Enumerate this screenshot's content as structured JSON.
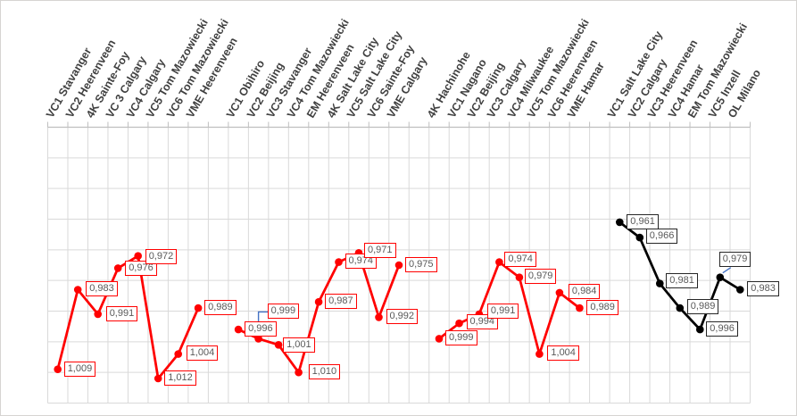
{
  "chart": {
    "background": "#FFFFFF",
    "frame_border_color": "#D6D4D2",
    "gridline_color": "#D9D9D9",
    "axis_line_color": "#BFBFBF",
    "category_label_color": "#404040",
    "data_label_text_color": "#595959",
    "leader_line_color": "#4472C4",
    "series_red": "#FF0000",
    "series_black": "#000000"
  },
  "chart_data": {
    "type": "line",
    "title": "",
    "legend": "none",
    "grid": true,
    "y_axis": {
      "min": 0.93,
      "max": 1.02,
      "step": 0.01,
      "inverted": true,
      "tick_labels_visible": false
    },
    "x_axis": {
      "position": "top",
      "label_rotation_deg": 60,
      "gap_between_groups": 1
    },
    "series": [
      {
        "name": "season-1",
        "color": "#FF0000",
        "label_border_color": "#FF0000",
        "points": [
          {
            "category": "VC1 Stavanger",
            "value": 1.009,
            "label": "1,009"
          },
          {
            "category": "VC2 Heerenveen",
            "value": 0.983,
            "label": "0,983",
            "label_offset": [
              9,
              0
            ]
          },
          {
            "category": "4K Sainte-Foy",
            "value": 0.991,
            "label": "0,991",
            "label_offset": [
              9,
              0
            ]
          },
          {
            "category": "VC 3 Calgary",
            "value": 0.976,
            "label": "0,976",
            "label_offset": [
              8,
              1
            ]
          },
          {
            "category": "VC4 Calgary",
            "value": 0.972,
            "label": "0,972",
            "label_offset": [
              8,
              1
            ]
          },
          {
            "category": "VC5 Tom Mazowiecki",
            "value": 1.012,
            "label": "1,012"
          },
          {
            "category": "VC6 Tom Mazowiecki",
            "value": 1.004,
            "label": "1,004",
            "label_offset": [
              9,
              0
            ]
          },
          {
            "category": "VME Heerenveen",
            "value": 0.989,
            "label": "0,989"
          }
        ]
      },
      {
        "name": "season-2",
        "color": "#FF0000",
        "label_border_color": "#FF0000",
        "points": [
          {
            "category": "VC1 Obihiro",
            "value": 0.996,
            "label": "0,996"
          },
          {
            "category": "VC2 Beijing",
            "value": 0.999,
            "label": "0,999",
            "label_offset": [
              10,
              -30
            ],
            "leader": "elbow"
          },
          {
            "category": "VC3 Stavanger",
            "value": 1.001,
            "label": "1,001",
            "label_offset": [
              5,
              1
            ]
          },
          {
            "category": "VC4 Tom Mazowiecki",
            "value": 1.01,
            "label": "1,010",
            "label_offset": [
              11,
              0
            ]
          },
          {
            "category": "EM Heerenveen",
            "value": 0.987,
            "label": "0,987"
          },
          {
            "category": "4K Salt Lake City",
            "value": 0.974,
            "label": "0,974"
          },
          {
            "category": "VC5 Salt Lake City",
            "value": 0.971,
            "label": "0,971",
            "label_offset": [
              6,
              -2
            ]
          },
          {
            "category": "VC6 Sainte-Foy",
            "value": 0.992,
            "label": "0,992",
            "label_offset": [
              8,
              0
            ]
          },
          {
            "category": "VME Calgary",
            "value": 0.975,
            "label": "0,975"
          }
        ]
      },
      {
        "name": "season-3",
        "color": "#FF0000",
        "label_border_color": "#FF0000",
        "points": [
          {
            "category": "4K Hachinohe",
            "value": 0.999,
            "label": "0,999"
          },
          {
            "category": "VC1 Nagano",
            "value": 0.994,
            "label": "0,994",
            "label_offset": [
              8,
              -1
            ]
          },
          {
            "category": "VC2 Beijing",
            "value": 0.991,
            "label": "0,991",
            "label_offset": [
              9,
              -3
            ]
          },
          {
            "category": "VC3 Calgary",
            "value": 0.974,
            "label": "0,974",
            "label_offset": [
              6,
              -2
            ]
          },
          {
            "category": "VC4 Milwaukee",
            "value": 0.979,
            "label": "0,979",
            "label_offset": [
              6,
              -1
            ]
          },
          {
            "category": "VC5 Tom Mazowiecki",
            "value": 1.004,
            "label": "1,004",
            "label_offset": [
              9,
              0
            ]
          },
          {
            "category": "VC6 Heerenveen",
            "value": 0.984,
            "label": "0,984",
            "label_offset": [
              10,
              -1
            ]
          },
          {
            "category": "VME Hamar",
            "value": 0.989,
            "label": "0,989",
            "label_offset": [
              8,
              0
            ]
          }
        ]
      },
      {
        "name": "season-4",
        "color": "#000000",
        "label_border_color": "#262626",
        "points": [
          {
            "category": "VC1 Salt Lake City",
            "value": 0.961,
            "label": "0,961",
            "label_offset": [
              8,
              0
            ]
          },
          {
            "category": "VC2 Calgary",
            "value": 0.966,
            "label": "0,966",
            "label_offset": [
              7,
              -1
            ]
          },
          {
            "category": "VC3 Heerenveen",
            "value": 0.981,
            "label": "0,981",
            "label_offset": [
              7,
              -2
            ]
          },
          {
            "category": "VC4 Hamar",
            "value": 0.989,
            "label": "0,989",
            "label_offset": [
              8,
              -1
            ]
          },
          {
            "category": "EM Tom Mazowiecki",
            "value": 0.996,
            "label": "0,996",
            "label_offset": [
              7,
              0
            ]
          },
          {
            "category": "VC5 Inzell",
            "value": 0.979,
            "label": "0,979",
            "label_offset": [
              -1,
              -20
            ],
            "leader": "straight"
          },
          {
            "category": "OL Milano",
            "value": 0.983,
            "label": "0,983",
            "label_offset": [
              8,
              0
            ]
          }
        ]
      }
    ]
  }
}
